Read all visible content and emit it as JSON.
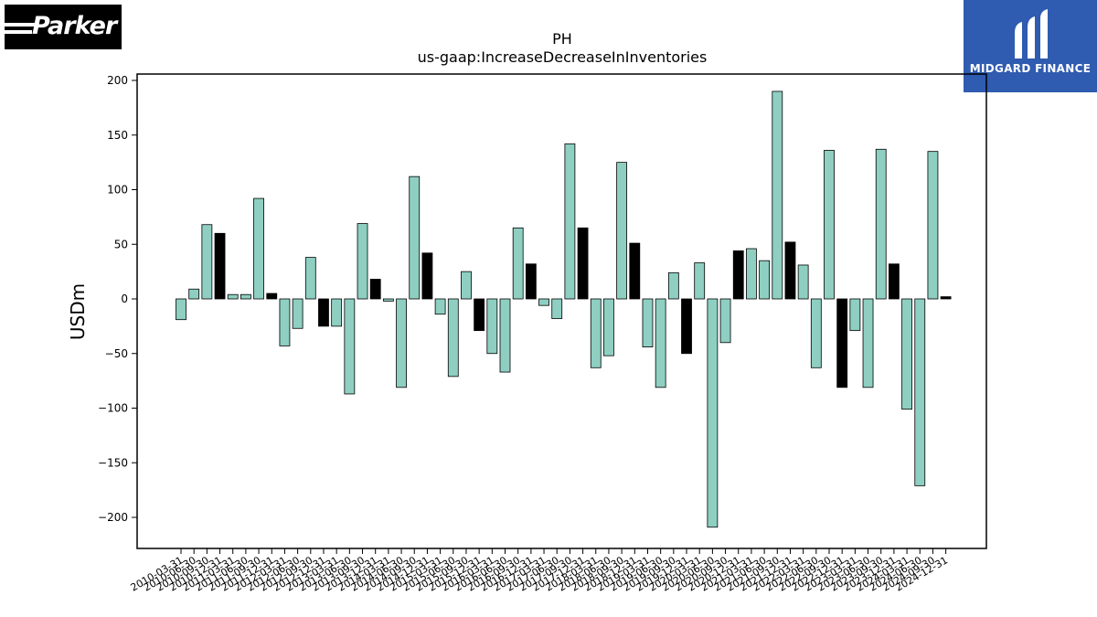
{
  "logos": {
    "left_text": "Parker",
    "right_text": "MIDGARD FINANCE"
  },
  "colors": {
    "bar_primary": "#8ecfc2",
    "bar_secondary": "#000000",
    "axis": "#000000",
    "logo_right_bg": "#2f5bb0"
  },
  "chart_data": {
    "type": "bar",
    "title": "PH",
    "subtitle": "us-gaap:IncreaseDecreaseInInventories",
    "xlabel": "",
    "ylabel": "USDm",
    "ylim": [
      -230,
      205
    ],
    "yticks": [
      200,
      150,
      100,
      50,
      0,
      -50,
      -100,
      -150,
      -200
    ],
    "ytick_labels": [
      "200",
      "150",
      "100",
      "50",
      "0",
      "−50",
      "−100",
      "−150",
      "−200"
    ],
    "grid": false,
    "categories": [
      "2010-03-31",
      "2010-06-30",
      "2010-09-30",
      "2010-12-31",
      "2011-03-31",
      "2011-06-30",
      "2011-09-30",
      "2011-12-31",
      "2012-03-31",
      "2012-06-30",
      "2012-09-30",
      "2012-12-31",
      "2013-03-31",
      "2013-06-30",
      "2013-09-30",
      "2013-12-31",
      "2014-03-31",
      "2014-06-30",
      "2014-09-30",
      "2014-12-31",
      "2015-03-31",
      "2015-06-30",
      "2015-09-30",
      "2015-12-31",
      "2016-03-31",
      "2016-06-30",
      "2016-09-30",
      "2016-12-31",
      "2017-03-31",
      "2017-06-30",
      "2017-09-30",
      "2017-12-31",
      "2018-03-31",
      "2018-06-30",
      "2018-09-30",
      "2018-12-31",
      "2019-03-31",
      "2019-06-30",
      "2019-09-30",
      "2019-12-31",
      "2020-03-31",
      "2020-06-30",
      "2020-09-30",
      "2020-12-31",
      "2021-03-31",
      "2021-06-30",
      "2021-09-30",
      "2021-12-31",
      "2022-03-31",
      "2022-06-30",
      "2022-09-30",
      "2022-12-31",
      "2023-03-31",
      "2023-06-30",
      "2023-09-30",
      "2023-12-31",
      "2024-03-31",
      "2024-06-30",
      "2024-09-30",
      "2024-12-31"
    ],
    "values": [
      -19,
      9,
      68,
      60,
      4,
      4,
      92,
      5,
      -43,
      -27,
      38,
      -25,
      -25,
      -87,
      69,
      18,
      -2,
      -81,
      112,
      42,
      -14,
      -71,
      25,
      -29,
      -50,
      -67,
      65,
      32,
      -6,
      -18,
      142,
      65,
      -63,
      -52,
      125,
      51,
      -44,
      -81,
      24,
      -50,
      33,
      -209,
      -40,
      44,
      46,
      35,
      190,
      52,
      31,
      -63,
      136,
      -81,
      -29,
      -81,
      137,
      32,
      -101,
      -171,
      135,
      2
    ],
    "bar_colors": [
      "#8ecfc2",
      "#8ecfc2",
      "#8ecfc2",
      "#000000",
      "#8ecfc2",
      "#8ecfc2",
      "#8ecfc2",
      "#000000",
      "#8ecfc2",
      "#8ecfc2",
      "#8ecfc2",
      "#000000",
      "#8ecfc2",
      "#8ecfc2",
      "#8ecfc2",
      "#000000",
      "#8ecfc2",
      "#8ecfc2",
      "#8ecfc2",
      "#000000",
      "#8ecfc2",
      "#8ecfc2",
      "#8ecfc2",
      "#000000",
      "#8ecfc2",
      "#8ecfc2",
      "#8ecfc2",
      "#000000",
      "#8ecfc2",
      "#8ecfc2",
      "#8ecfc2",
      "#000000",
      "#8ecfc2",
      "#8ecfc2",
      "#8ecfc2",
      "#000000",
      "#8ecfc2",
      "#8ecfc2",
      "#8ecfc2",
      "#000000",
      "#8ecfc2",
      "#8ecfc2",
      "#8ecfc2",
      "#000000",
      "#8ecfc2",
      "#8ecfc2",
      "#8ecfc2",
      "#000000",
      "#8ecfc2",
      "#8ecfc2",
      "#8ecfc2",
      "#000000",
      "#8ecfc2",
      "#8ecfc2",
      "#8ecfc2",
      "#000000",
      "#8ecfc2",
      "#8ecfc2",
      "#8ecfc2",
      "#000000"
    ]
  }
}
